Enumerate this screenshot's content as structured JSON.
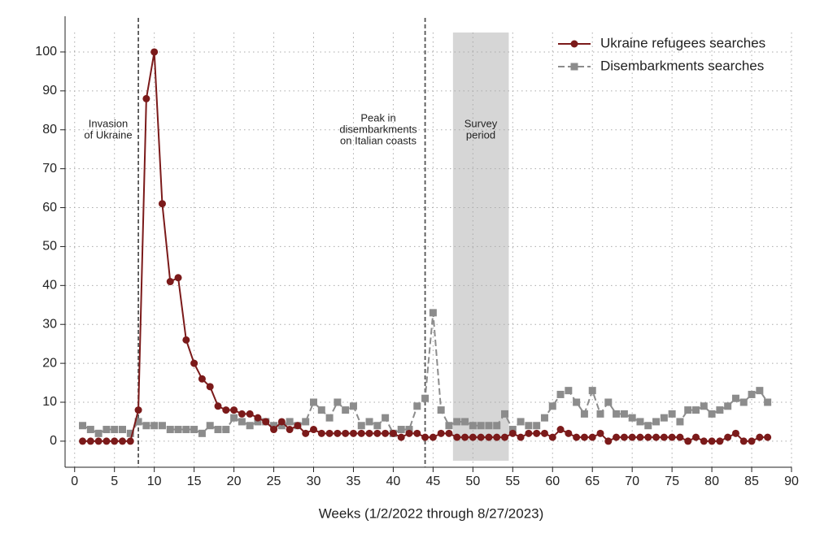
{
  "chart_data": {
    "type": "line",
    "x_label": "Weeks (1/2/2022 through 8/27/2023)",
    "x": [
      1,
      2,
      3,
      4,
      5,
      6,
      7,
      8,
      9,
      10,
      11,
      12,
      13,
      14,
      15,
      16,
      17,
      18,
      19,
      20,
      21,
      22,
      23,
      24,
      25,
      26,
      27,
      28,
      29,
      30,
      31,
      32,
      33,
      34,
      35,
      36,
      37,
      38,
      39,
      40,
      41,
      42,
      43,
      44,
      45,
      46,
      47,
      48,
      49,
      50,
      51,
      52,
      53,
      54,
      55,
      56,
      57,
      58,
      59,
      60,
      61,
      62,
      63,
      64,
      65,
      66,
      67,
      68,
      69,
      70,
      71,
      72,
      73,
      74,
      75,
      76,
      77,
      78,
      79,
      80,
      81,
      82,
      83,
      84,
      85,
      86,
      87
    ],
    "series": [
      {
        "name": "Ukraine refugees searches",
        "color": "#7b1a1a",
        "marker": "circle",
        "values": [
          0,
          0,
          0,
          0,
          0,
          0,
          0,
          8,
          88,
          100,
          61,
          41,
          42,
          26,
          20,
          16,
          14,
          9,
          8,
          8,
          7,
          7,
          6,
          5,
          3,
          5,
          3,
          4,
          2,
          3,
          2,
          2,
          2,
          2,
          2,
          2,
          2,
          2,
          2,
          2,
          1,
          2,
          2,
          1,
          1,
          2,
          2,
          1,
          1,
          1,
          1,
          1,
          1,
          1,
          2,
          1,
          2,
          2,
          2,
          1,
          3,
          2,
          1,
          1,
          1,
          2,
          0,
          1,
          1,
          1,
          1,
          1,
          1,
          1,
          1,
          1,
          0,
          1,
          0,
          0,
          0,
          1,
          2,
          0,
          0,
          1,
          1
        ]
      },
      {
        "name": "Disembarkments searches",
        "color": "#8c8c8c",
        "marker": "square",
        "dashed": true,
        "values": [
          4,
          3,
          2,
          3,
          3,
          3,
          2,
          5,
          4,
          4,
          4,
          3,
          3,
          3,
          3,
          2,
          4,
          3,
          3,
          6,
          5,
          4,
          5,
          5,
          4,
          4,
          5,
          4,
          5,
          10,
          8,
          6,
          10,
          8,
          9,
          4,
          5,
          4,
          6,
          2,
          3,
          3,
          9,
          11,
          33,
          8,
          4,
          5,
          5,
          4,
          4,
          4,
          4,
          7,
          3,
          5,
          4,
          4,
          6,
          9,
          12,
          13,
          10,
          7,
          13,
          7,
          10,
          7,
          7,
          6,
          5,
          4,
          5,
          6,
          7,
          5,
          8,
          8,
          9,
          7,
          8,
          9,
          11,
          10,
          12,
          13,
          10
        ]
      }
    ],
    "xlim": [
      -1.2,
      90
    ],
    "xticks": [
      0,
      5,
      10,
      15,
      20,
      25,
      30,
      35,
      40,
      45,
      50,
      55,
      60,
      65,
      70,
      75,
      80,
      85,
      90
    ],
    "ylim": [
      -6.7,
      105
    ],
    "yticks": [
      0,
      10,
      20,
      30,
      40,
      50,
      60,
      70,
      80,
      90,
      100
    ],
    "grid": true,
    "legend": "top-right",
    "vlines": [
      8,
      44
    ],
    "shaded": [
      47.5,
      54.5
    ],
    "annotations": [
      {
        "lines": [
          "Invasion",
          "of Ukraine"
        ]
      },
      {
        "lines": [
          "Peak in",
          "disembarkments",
          "on Italian coasts"
        ]
      },
      {
        "lines": [
          "Survey",
          "period"
        ]
      }
    ]
  }
}
